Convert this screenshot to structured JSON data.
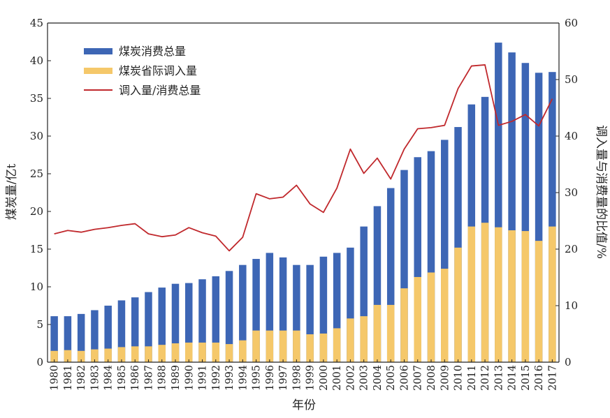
{
  "chart_data": {
    "type": "bar",
    "xlabel": "年份",
    "ylabel_left": "煤炭量/亿t",
    "ylabel_right": "调入量与消费量的比值/%",
    "ylim_left": [
      0,
      45
    ],
    "yticks_left": [
      0,
      5,
      10,
      15,
      20,
      25,
      30,
      35,
      40,
      45
    ],
    "ylim_right": [
      0,
      60
    ],
    "yticks_right": [
      0,
      10,
      20,
      30,
      40,
      50,
      60
    ],
    "legend_position": "top-left",
    "categories": [
      "1980",
      "1981",
      "1982",
      "1983",
      "1984",
      "1985",
      "1986",
      "1987",
      "1988",
      "1989",
      "1990",
      "1991",
      "1992",
      "1993",
      "1994",
      "1995",
      "1996",
      "1997",
      "1998",
      "1999",
      "2000",
      "2001",
      "2002",
      "2003",
      "2004",
      "2005",
      "2006",
      "2007",
      "2008",
      "2009",
      "2010",
      "2011",
      "2012",
      "2013",
      "2014",
      "2015",
      "2016",
      "2017"
    ],
    "series": [
      {
        "name": "煤炭消费总量",
        "kind": "bar",
        "axis": "left",
        "color": "#3d66b5",
        "values": [
          6.1,
          6.1,
          6.4,
          6.9,
          7.5,
          8.2,
          8.6,
          9.3,
          9.9,
          10.4,
          10.5,
          11.0,
          11.4,
          12.1,
          12.9,
          13.7,
          14.5,
          13.9,
          12.9,
          12.9,
          14.0,
          14.5,
          15.2,
          18.0,
          20.7,
          23.1,
          25.5,
          27.2,
          28.0,
          29.5,
          31.2,
          34.2,
          35.2,
          42.4,
          41.1,
          39.7,
          38.4,
          38.5
        ]
      },
      {
        "name": "煤炭省际调入量",
        "kind": "bar",
        "axis": "left",
        "color": "#f5c86a",
        "values": [
          1.5,
          1.6,
          1.5,
          1.7,
          1.8,
          2.0,
          2.1,
          2.1,
          2.3,
          2.5,
          2.6,
          2.6,
          2.6,
          2.4,
          2.9,
          4.2,
          4.2,
          4.2,
          4.2,
          3.7,
          3.8,
          4.5,
          5.8,
          6.1,
          7.6,
          7.6,
          9.8,
          11.3,
          11.9,
          12.4,
          15.2,
          18.0,
          18.5,
          17.9,
          17.5,
          17.4,
          16.1,
          18.0
        ]
      },
      {
        "name": "调入量/消费总量",
        "kind": "line",
        "axis": "right",
        "color": "#c0282c",
        "values": [
          22.7,
          23.3,
          23.0,
          23.5,
          23.8,
          24.2,
          24.5,
          22.7,
          22.2,
          22.5,
          23.8,
          22.9,
          22.3,
          19.7,
          22.1,
          29.8,
          28.9,
          29.2,
          31.3,
          28.0,
          26.5,
          30.8,
          37.7,
          33.4,
          36.1,
          32.4,
          37.7,
          41.3,
          41.5,
          41.9,
          48.4,
          52.4,
          52.6,
          41.9,
          42.6,
          43.8,
          41.8,
          46.6
        ]
      }
    ]
  }
}
